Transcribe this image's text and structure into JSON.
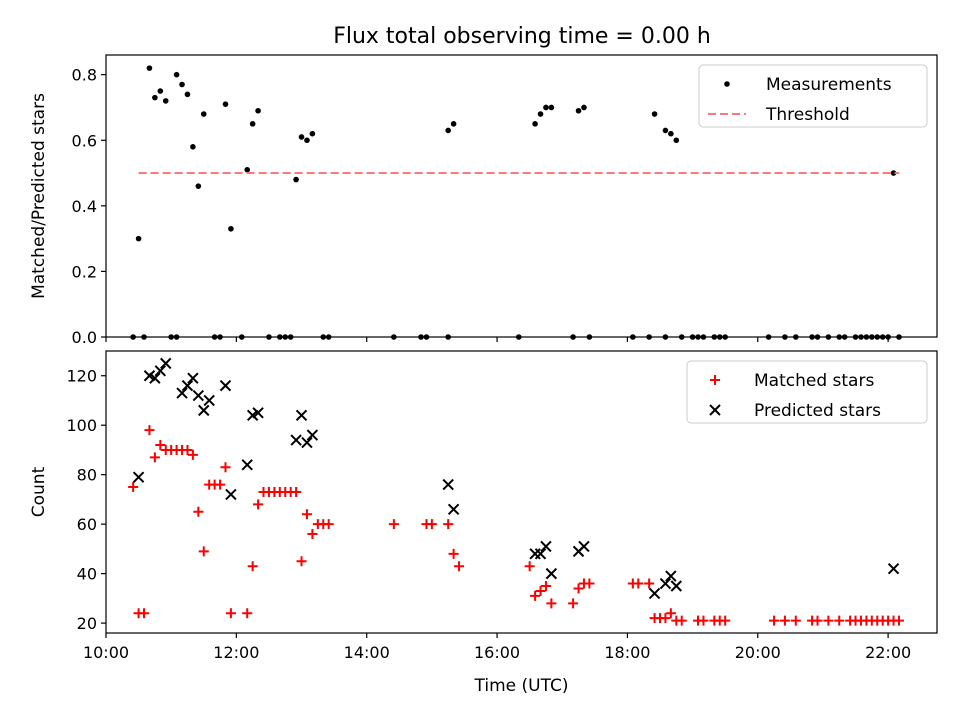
{
  "title": "Flux total observing time = 0.00 h",
  "chart_data": [
    {
      "type": "scatter",
      "ylabel": "Matched/Predicted stars",
      "xlim": [
        "10:00",
        "22:45"
      ],
      "ylim": [
        0,
        0.86
      ],
      "yticks": [
        0.0,
        0.2,
        0.4,
        0.6,
        0.8
      ],
      "ytick_labels": [
        "0.0",
        "0.2",
        "0.4",
        "0.6",
        "0.8"
      ],
      "legend_position": "top-right",
      "series": [
        {
          "name": "Measurements",
          "marker": "dot",
          "color": "#000000",
          "points": [
            [
              "10:30",
              0.3
            ],
            [
              "10:40",
              0.82
            ],
            [
              "10:45",
              0.73
            ],
            [
              "10:50",
              0.75
            ],
            [
              "10:55",
              0.72
            ],
            [
              "11:05",
              0.8
            ],
            [
              "11:10",
              0.77
            ],
            [
              "11:15",
              0.74
            ],
            [
              "11:20",
              0.58
            ],
            [
              "11:25",
              0.46
            ],
            [
              "11:30",
              0.68
            ],
            [
              "11:50",
              0.71
            ],
            [
              "11:55",
              0.33
            ],
            [
              "12:10",
              0.51
            ],
            [
              "12:15",
              0.65
            ],
            [
              "12:20",
              0.69
            ],
            [
              "12:55",
              0.48
            ],
            [
              "13:00",
              0.61
            ],
            [
              "13:05",
              0.6
            ],
            [
              "13:10",
              0.62
            ],
            [
              "15:15",
              0.63
            ],
            [
              "15:20",
              0.65
            ],
            [
              "16:35",
              0.65
            ],
            [
              "16:40",
              0.68
            ],
            [
              "16:45",
              0.7
            ],
            [
              "16:50",
              0.7
            ],
            [
              "17:15",
              0.69
            ],
            [
              "17:20",
              0.7
            ],
            [
              "18:25",
              0.68
            ],
            [
              "18:35",
              0.63
            ],
            [
              "18:40",
              0.62
            ],
            [
              "18:45",
              0.6
            ],
            [
              "22:05",
              0.5
            ],
            [
              "10:25",
              0.0
            ],
            [
              "10:35",
              0.0
            ],
            [
              "11:00",
              0.0
            ],
            [
              "11:05",
              0.0
            ],
            [
              "11:40",
              0.0
            ],
            [
              "11:45",
              0.0
            ],
            [
              "12:05",
              0.0
            ],
            [
              "12:30",
              0.0
            ],
            [
              "12:40",
              0.0
            ],
            [
              "12:45",
              0.0
            ],
            [
              "12:50",
              0.0
            ],
            [
              "13:20",
              0.0
            ],
            [
              "13:25",
              0.0
            ],
            [
              "14:25",
              0.0
            ],
            [
              "14:50",
              0.0
            ],
            [
              "14:55",
              0.0
            ],
            [
              "15:15",
              0.0
            ],
            [
              "16:20",
              0.0
            ],
            [
              "17:10",
              0.0
            ],
            [
              "17:25",
              0.0
            ],
            [
              "18:05",
              0.0
            ],
            [
              "18:20",
              0.0
            ],
            [
              "18:35",
              0.0
            ],
            [
              "18:50",
              0.0
            ],
            [
              "19:00",
              0.0
            ],
            [
              "19:05",
              0.0
            ],
            [
              "19:10",
              0.0
            ],
            [
              "19:20",
              0.0
            ],
            [
              "19:25",
              0.0
            ],
            [
              "19:30",
              0.0
            ],
            [
              "20:10",
              0.0
            ],
            [
              "20:25",
              0.0
            ],
            [
              "20:35",
              0.0
            ],
            [
              "20:50",
              0.0
            ],
            [
              "20:55",
              0.0
            ],
            [
              "21:05",
              0.0
            ],
            [
              "21:15",
              0.0
            ],
            [
              "21:20",
              0.0
            ],
            [
              "21:30",
              0.0
            ],
            [
              "21:35",
              0.0
            ],
            [
              "21:40",
              0.0
            ],
            [
              "21:45",
              0.0
            ],
            [
              "21:50",
              0.0
            ],
            [
              "21:55",
              0.0
            ],
            [
              "22:00",
              0.0
            ],
            [
              "22:10",
              0.0
            ]
          ]
        },
        {
          "name": "Threshold",
          "style": "dashed",
          "color": "#ff7777",
          "points": [
            [
              "10:30",
              0.5
            ],
            [
              "22:10",
              0.5
            ]
          ]
        }
      ]
    },
    {
      "type": "scatter",
      "xlabel": "Time (UTC)",
      "ylabel": "Count",
      "xlim": [
        "10:00",
        "22:45"
      ],
      "ylim": [
        16,
        130
      ],
      "yticks": [
        20,
        40,
        60,
        80,
        100,
        120
      ],
      "ytick_labels": [
        "20",
        "40",
        "60",
        "80",
        "100",
        "120"
      ],
      "xticks": [
        "10:00",
        "12:00",
        "14:00",
        "16:00",
        "18:00",
        "20:00",
        "22:00"
      ],
      "xtick_labels": [
        "10:00",
        "12:00",
        "14:00",
        "16:00",
        "18:00",
        "20:00",
        "22:00"
      ],
      "legend_position": "top-right",
      "series": [
        {
          "name": "Matched stars",
          "marker": "plus",
          "color": "#ff0000",
          "points": [
            [
              "10:25",
              75
            ],
            [
              "10:30",
              24
            ],
            [
              "10:35",
              24
            ],
            [
              "10:40",
              98
            ],
            [
              "10:45",
              87
            ],
            [
              "10:50",
              92
            ],
            [
              "10:55",
              90
            ],
            [
              "11:00",
              90
            ],
            [
              "11:05",
              90
            ],
            [
              "11:10",
              90
            ],
            [
              "11:15",
              90
            ],
            [
              "11:20",
              88
            ],
            [
              "11:25",
              65
            ],
            [
              "11:30",
              49
            ],
            [
              "11:35",
              76
            ],
            [
              "11:40",
              76
            ],
            [
              "11:45",
              76
            ],
            [
              "11:50",
              83
            ],
            [
              "11:55",
              24
            ],
            [
              "12:10",
              24
            ],
            [
              "12:15",
              43
            ],
            [
              "12:20",
              68
            ],
            [
              "12:25",
              73
            ],
            [
              "12:30",
              73
            ],
            [
              "12:35",
              73
            ],
            [
              "12:40",
              73
            ],
            [
              "12:45",
              73
            ],
            [
              "12:50",
              73
            ],
            [
              "12:55",
              73
            ],
            [
              "13:00",
              45
            ],
            [
              "13:05",
              64
            ],
            [
              "13:10",
              56
            ],
            [
              "13:15",
              60
            ],
            [
              "13:20",
              60
            ],
            [
              "13:25",
              60
            ],
            [
              "14:25",
              60
            ],
            [
              "14:55",
              60
            ],
            [
              "15:00",
              60
            ],
            [
              "15:15",
              60
            ],
            [
              "15:20",
              48
            ],
            [
              "15:25",
              43
            ],
            [
              "16:30",
              43
            ],
            [
              "16:35",
              31
            ],
            [
              "16:40",
              33
            ],
            [
              "16:45",
              35
            ],
            [
              "16:50",
              28
            ],
            [
              "17:10",
              28
            ],
            [
              "17:15",
              34
            ],
            [
              "17:20",
              36
            ],
            [
              "17:25",
              36
            ],
            [
              "18:05",
              36
            ],
            [
              "18:10",
              36
            ],
            [
              "18:20",
              36
            ],
            [
              "18:25",
              22
            ],
            [
              "18:30",
              22
            ],
            [
              "18:35",
              22
            ],
            [
              "18:40",
              24
            ],
            [
              "18:45",
              21
            ],
            [
              "18:50",
              21
            ],
            [
              "19:05",
              21
            ],
            [
              "19:10",
              21
            ],
            [
              "19:20",
              21
            ],
            [
              "19:25",
              21
            ],
            [
              "19:30",
              21
            ],
            [
              "20:15",
              21
            ],
            [
              "20:25",
              21
            ],
            [
              "20:35",
              21
            ],
            [
              "20:50",
              21
            ],
            [
              "20:55",
              21
            ],
            [
              "21:05",
              21
            ],
            [
              "21:15",
              21
            ],
            [
              "21:25",
              21
            ],
            [
              "21:30",
              21
            ],
            [
              "21:35",
              21
            ],
            [
              "21:40",
              21
            ],
            [
              "21:45",
              21
            ],
            [
              "21:50",
              21
            ],
            [
              "21:55",
              21
            ],
            [
              "22:00",
              21
            ],
            [
              "22:05",
              21
            ],
            [
              "22:10",
              21
            ]
          ]
        },
        {
          "name": "Predicted stars",
          "marker": "x",
          "color": "#000000",
          "points": [
            [
              "10:30",
              79
            ],
            [
              "10:40",
              120
            ],
            [
              "10:45",
              119
            ],
            [
              "10:50",
              122
            ],
            [
              "10:55",
              125
            ],
            [
              "11:10",
              113
            ],
            [
              "11:15",
              116
            ],
            [
              "11:20",
              119
            ],
            [
              "11:25",
              112
            ],
            [
              "11:30",
              106
            ],
            [
              "11:35",
              110
            ],
            [
              "11:50",
              116
            ],
            [
              "11:55",
              72
            ],
            [
              "12:10",
              84
            ],
            [
              "12:15",
              104
            ],
            [
              "12:20",
              105
            ],
            [
              "12:55",
              94
            ],
            [
              "13:00",
              104
            ],
            [
              "13:05",
              93
            ],
            [
              "13:10",
              96
            ],
            [
              "15:15",
              76
            ],
            [
              "15:20",
              66
            ],
            [
              "16:35",
              48
            ],
            [
              "16:40",
              48
            ],
            [
              "16:45",
              51
            ],
            [
              "16:50",
              40
            ],
            [
              "17:15",
              49
            ],
            [
              "17:20",
              51
            ],
            [
              "18:25",
              32
            ],
            [
              "18:35",
              36
            ],
            [
              "18:40",
              39
            ],
            [
              "18:45",
              35
            ],
            [
              "22:05",
              42
            ]
          ]
        }
      ]
    }
  ]
}
